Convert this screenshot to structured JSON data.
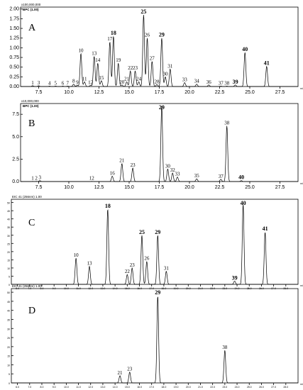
{
  "chart_data": [
    {
      "type": "line",
      "panel": "A",
      "top_label": "x100,000,000",
      "ylabel": "BPC (1.00)",
      "xlim": [
        6,
        29
      ],
      "ylim": [
        0,
        2.05
      ],
      "xticks": [
        "7.5",
        "10.0",
        "12.5",
        "15.0",
        "17.5",
        "20.0",
        "22.5",
        "25.0",
        "27.5"
      ],
      "yticks": [
        "0.00",
        "0.25",
        "0.50",
        "0.75",
        "1.00",
        "1.25",
        "1.50",
        "1.75",
        "2.00"
      ],
      "peaks": [
        {
          "label": "1",
          "x": 7.0,
          "y": 0.02,
          "bold": false
        },
        {
          "label": "3",
          "x": 7.5,
          "y": 0.02,
          "bold": false
        },
        {
          "label": "4",
          "x": 8.4,
          "y": 0.01,
          "bold": false
        },
        {
          "label": "5",
          "x": 8.9,
          "y": 0.01,
          "bold": false
        },
        {
          "label": "6",
          "x": 9.5,
          "y": 0.01,
          "bold": false
        },
        {
          "label": "7",
          "x": 9.9,
          "y": 0.01,
          "bold": false
        },
        {
          "label": "8",
          "x": 10.4,
          "y": 0.06,
          "bold": false
        },
        {
          "label": "9",
          "x": 10.7,
          "y": 0.03,
          "bold": false
        },
        {
          "label": "10",
          "x": 11.0,
          "y": 0.85,
          "bold": false
        },
        {
          "label": "11",
          "x": 11.3,
          "y": 0.12,
          "bold": false
        },
        {
          "label": "12",
          "x": 11.8,
          "y": 0.03,
          "bold": false
        },
        {
          "label": "13",
          "x": 12.1,
          "y": 0.78,
          "bold": false
        },
        {
          "label": "14",
          "x": 12.4,
          "y": 0.6,
          "bold": false
        },
        {
          "label": "15",
          "x": 12.7,
          "y": 0.15,
          "bold": false
        },
        {
          "label": "17",
          "x": 13.4,
          "y": 1.15,
          "bold": false
        },
        {
          "label": "18",
          "x": 13.7,
          "y": 1.3,
          "bold": true
        },
        {
          "label": "19",
          "x": 14.1,
          "y": 0.6,
          "bold": false
        },
        {
          "label": "20",
          "x": 14.4,
          "y": 0.04,
          "bold": false
        },
        {
          "label": "21",
          "x": 14.8,
          "y": 0.12,
          "bold": false
        },
        {
          "label": "22",
          "x": 15.1,
          "y": 0.4,
          "bold": false
        },
        {
          "label": "23",
          "x": 15.5,
          "y": 0.4,
          "bold": false
        },
        {
          "label": "24",
          "x": 15.8,
          "y": 0.12,
          "bold": false
        },
        {
          "label": "25",
          "x": 16.2,
          "y": 1.85,
          "bold": true
        },
        {
          "label": "26",
          "x": 16.5,
          "y": 1.25,
          "bold": false
        },
        {
          "label": "27",
          "x": 16.9,
          "y": 0.65,
          "bold": false
        },
        {
          "label": "28",
          "x": 17.3,
          "y": 0.05,
          "bold": false
        },
        {
          "label": "29",
          "x": 17.7,
          "y": 1.25,
          "bold": true
        },
        {
          "label": "30",
          "x": 18.0,
          "y": 0.25,
          "bold": false
        },
        {
          "label": "31",
          "x": 18.4,
          "y": 0.45,
          "bold": false
        },
        {
          "label": "33",
          "x": 19.6,
          "y": 0.1,
          "bold": false
        },
        {
          "label": "34",
          "x": 20.6,
          "y": 0.06,
          "bold": false
        },
        {
          "label": "36",
          "x": 21.6,
          "y": 0.04,
          "bold": false
        },
        {
          "label": "37",
          "x": 22.6,
          "y": 0.01,
          "bold": false
        },
        {
          "label": "38",
          "x": 23.1,
          "y": 0.01,
          "bold": false
        },
        {
          "label": "39",
          "x": 23.8,
          "y": 0.04,
          "bold": true
        },
        {
          "label": "40",
          "x": 24.6,
          "y": 0.88,
          "bold": true
        },
        {
          "label": "41",
          "x": 26.4,
          "y": 0.52,
          "bold": true
        }
      ]
    },
    {
      "type": "line",
      "panel": "B",
      "top_label": "x10,000,000",
      "ylabel": "BPC (1.00)",
      "xlim": [
        6,
        29
      ],
      "ylim": [
        0,
        8.7
      ],
      "xticks": [
        "7.5",
        "10.0",
        "12.5",
        "15.0",
        "17.5",
        "20.0",
        "22.5",
        "25.0",
        "27.5"
      ],
      "yticks": [
        "0.0",
        "2.5",
        "5.0",
        "7.5"
      ],
      "peaks": [
        {
          "label": "1",
          "x": 7.0,
          "y": 0.02,
          "bold": false
        },
        {
          "label": "2",
          "x": 7.3,
          "y": 0.02,
          "bold": false
        },
        {
          "label": "3",
          "x": 7.6,
          "y": 0.1,
          "bold": false
        },
        {
          "label": "12",
          "x": 11.9,
          "y": 0.02,
          "bold": false
        },
        {
          "label": "16",
          "x": 13.6,
          "y": 0.6,
          "bold": false
        },
        {
          "label": "21",
          "x": 14.4,
          "y": 2.0,
          "bold": false
        },
        {
          "label": "23",
          "x": 15.3,
          "y": 1.5,
          "bold": false
        },
        {
          "label": "29",
          "x": 17.7,
          "y": 8.4,
          "bold": true
        },
        {
          "label": "30",
          "x": 18.2,
          "y": 1.4,
          "bold": false
        },
        {
          "label": "32",
          "x": 18.6,
          "y": 0.95,
          "bold": false
        },
        {
          "label": "33",
          "x": 19.0,
          "y": 0.5,
          "bold": false
        },
        {
          "label": "35",
          "x": 20.6,
          "y": 0.3,
          "bold": false
        },
        {
          "label": "37",
          "x": 22.6,
          "y": 0.25,
          "bold": false
        },
        {
          "label": "38",
          "x": 23.1,
          "y": 6.2,
          "bold": false
        },
        {
          "label": "40",
          "x": 24.3,
          "y": 0.1,
          "bold": true
        }
      ]
    },
    {
      "type": "line",
      "panel": "C",
      "top_label": "EIC 41 (256nm) 1.00",
      "xlim": [
        5.5,
        29
      ],
      "ylim": [
        0,
        52
      ],
      "xticks": [
        "6.0",
        "7.0",
        "8.0",
        "9.0",
        "10.0",
        "11.0",
        "12.0",
        "13.0",
        "14.0",
        "15.0",
        "16.0",
        "17.0",
        "18.0",
        "19.0",
        "20.0",
        "21.0",
        "22.0",
        "23.0",
        "24.0",
        "25.0",
        "26.0",
        "27.0",
        "28.0"
      ],
      "yticks": [
        "0",
        "5",
        "10",
        "15",
        "20",
        "25",
        "30",
        "35",
        "40",
        "45",
        "50"
      ],
      "peaks": [
        {
          "label": "10",
          "x": 10.8,
          "y": 16,
          "bold": false
        },
        {
          "label": "13",
          "x": 11.9,
          "y": 11,
          "bold": false
        },
        {
          "label": "18",
          "x": 13.4,
          "y": 46,
          "bold": true
        },
        {
          "label": "22",
          "x": 15.0,
          "y": 6,
          "bold": false
        },
        {
          "label": "23",
          "x": 15.4,
          "y": 10,
          "bold": false
        },
        {
          "label": "25",
          "x": 16.2,
          "y": 30,
          "bold": true
        },
        {
          "label": "26",
          "x": 16.6,
          "y": 14,
          "bold": false
        },
        {
          "label": "29",
          "x": 17.5,
          "y": 30,
          "bold": true
        },
        {
          "label": "31",
          "x": 18.2,
          "y": 8,
          "bold": false
        },
        {
          "label": "39",
          "x": 23.8,
          "y": 2,
          "bold": true
        },
        {
          "label": "40",
          "x": 24.5,
          "y": 49,
          "bold": true
        },
        {
          "label": "41",
          "x": 26.3,
          "y": 32,
          "bold": true
        }
      ]
    },
    {
      "type": "line",
      "panel": "D",
      "top_label": "EIC 41 (256nm) 1.00",
      "xlim": [
        5.5,
        29
      ],
      "ylim": [
        0,
        52
      ],
      "xticks": [
        "6.0",
        "7.0",
        "8.0",
        "9.0",
        "10.0",
        "11.0",
        "12.0",
        "13.0",
        "14.0",
        "15.0",
        "16.0",
        "17.0",
        "18.0",
        "19.0",
        "20.0",
        "21.0",
        "22.0",
        "23.0",
        "24.0",
        "25.0",
        "26.0",
        "27.0",
        "28.0"
      ],
      "yticks": [
        "0",
        "5",
        "10",
        "15",
        "20",
        "25",
        "30",
        "35",
        "40",
        "45",
        "50"
      ],
      "peaks": [
        {
          "label": "21",
          "x": 14.4,
          "y": 4,
          "bold": false
        },
        {
          "label": "23",
          "x": 15.2,
          "y": 6,
          "bold": false
        },
        {
          "label": "29",
          "x": 17.5,
          "y": 48,
          "bold": true
        },
        {
          "label": "38",
          "x": 23.0,
          "y": 18,
          "bold": false
        }
      ]
    }
  ],
  "x_unit_label": "min"
}
